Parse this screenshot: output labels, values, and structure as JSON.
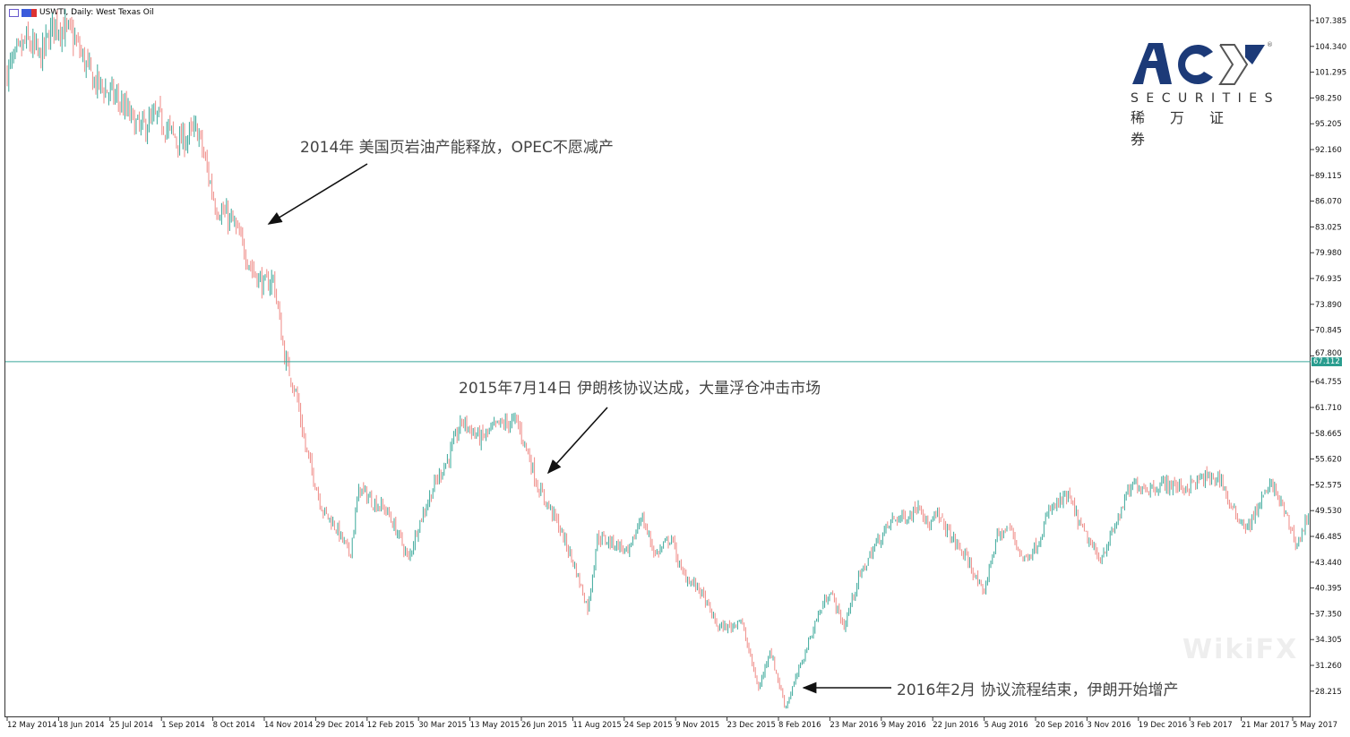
{
  "header": {
    "title": "USWTI, Daily:  West Texas Oil"
  },
  "logo": {
    "brand": "ACY",
    "sub": "SECURITIES",
    "cn": "稀万证券",
    "registered": "®"
  },
  "watermark": "WikiFX",
  "annotations": [
    "2014年 美国页岩油产能释放，OPEC不愿减产",
    "2015年7月14日 伊朗核协议达成，大量浮仓冲击市场",
    "2016年2月 协议流程结束，伊朗开始增产"
  ],
  "current_price": "67.112",
  "chart_data": {
    "type": "candlestick",
    "title": "USWTI, Daily:  West Texas Oil",
    "symbol": "USWTI",
    "timeframe": "Daily",
    "ylim": [
      26.0,
      108.5
    ],
    "y_ticks": [
      "107.385",
      "104.340",
      "101.295",
      "98.250",
      "95.205",
      "92.160",
      "89.115",
      "86.070",
      "83.025",
      "79.980",
      "76.935",
      "73.890",
      "70.845",
      "67.800",
      "64.755",
      "61.710",
      "58.665",
      "55.620",
      "52.575",
      "49.530",
      "46.485",
      "43.440",
      "40.395",
      "37.350",
      "34.305",
      "31.260",
      "28.215"
    ],
    "x_ticks": [
      {
        "date": "2014-05-12",
        "label": "12 May 2014"
      },
      {
        "date": "2014-06-18",
        "label": "18 Jun 2014"
      },
      {
        "date": "2014-07-25",
        "label": "25 Jul 2014"
      },
      {
        "date": "2014-09-01",
        "label": "1 Sep 2014"
      },
      {
        "date": "2014-10-08",
        "label": "8 Oct 2014"
      },
      {
        "date": "2014-11-14",
        "label": "14 Nov 2014"
      },
      {
        "date": "2014-12-29",
        "label": "29 Dec 2014"
      },
      {
        "date": "2015-02-12",
        "label": "12 Feb 2015"
      },
      {
        "date": "2015-03-30",
        "label": "30 Mar 2015"
      },
      {
        "date": "2015-05-13",
        "label": "13 May 2015"
      },
      {
        "date": "2015-06-26",
        "label": "26 Jun 2015"
      },
      {
        "date": "2015-08-11",
        "label": "11 Aug 2015"
      },
      {
        "date": "2015-09-24",
        "label": "24 Sep 2015"
      },
      {
        "date": "2015-11-09",
        "label": "9 Nov 2015"
      },
      {
        "date": "2015-12-23",
        "label": "23 Dec 2015"
      },
      {
        "date": "2016-02-08",
        "label": "8 Feb 2016"
      },
      {
        "date": "2016-03-23",
        "label": "23 Mar 2016"
      },
      {
        "date": "2016-05-09",
        "label": "9 May 2016"
      },
      {
        "date": "2016-06-22",
        "label": "22 Jun 2016"
      },
      {
        "date": "2016-08-05",
        "label": "5 Aug 2016"
      },
      {
        "date": "2016-09-20",
        "label": "20 Sep 2016"
      },
      {
        "date": "2016-11-03",
        "label": "3 Nov 2016"
      },
      {
        "date": "2016-12-19",
        "label": "19 Dec 2016"
      },
      {
        "date": "2017-02-03",
        "label": "3 Feb 2017"
      },
      {
        "date": "2017-03-21",
        "label": "21 Mar 2017"
      },
      {
        "date": "2017-05-05",
        "label": "5 May 2017"
      }
    ],
    "horizontal_line": 67.112,
    "colors": {
      "up": "#3aa89a",
      "down": "#ef8a86",
      "hline": "#3aa89a"
    },
    "approx_closes": [
      [
        "2014-05-12",
        101.4
      ],
      [
        "2014-05-26",
        105.0
      ],
      [
        "2014-06-05",
        103.0
      ],
      [
        "2014-06-15",
        107.2
      ],
      [
        "2014-06-28",
        105.6
      ],
      [
        "2014-07-13",
        100.3
      ],
      [
        "2014-07-30",
        98.2
      ],
      [
        "2014-08-16",
        94.5
      ],
      [
        "2014-08-29",
        96.0
      ],
      [
        "2014-09-14",
        93.0
      ],
      [
        "2014-09-27",
        94.5
      ],
      [
        "2014-10-10",
        85.5
      ],
      [
        "2014-10-23",
        83.4
      ],
      [
        "2014-11-05",
        78.1
      ],
      [
        "2014-11-14",
        76.0
      ],
      [
        "2014-11-22",
        77.0
      ],
      [
        "2014-12-02",
        67.5
      ],
      [
        "2014-12-12",
        63.3
      ],
      [
        "2014-12-20",
        57.0
      ],
      [
        "2015-01-04",
        49.6
      ],
      [
        "2015-01-16",
        47.5
      ],
      [
        "2015-01-28",
        44.3
      ],
      [
        "2015-02-05",
        52.2
      ],
      [
        "2015-02-17",
        50.6
      ],
      [
        "2015-03-01",
        49.6
      ],
      [
        "2015-03-13",
        46.4
      ],
      [
        "2015-03-21",
        43.7
      ],
      [
        "2015-03-29",
        47.5
      ],
      [
        "2015-04-13",
        52.7
      ],
      [
        "2015-04-25",
        55.9
      ],
      [
        "2015-05-06",
        60.1
      ],
      [
        "2015-05-22",
        58.0
      ],
      [
        "2015-06-06",
        59.6
      ],
      [
        "2015-06-22",
        60.1
      ],
      [
        "2015-07-03",
        55.9
      ],
      [
        "2015-07-11",
        52.2
      ],
      [
        "2015-07-27",
        48.5
      ],
      [
        "2015-08-12",
        43.2
      ],
      [
        "2015-08-24",
        37.9
      ],
      [
        "2015-09-01",
        46.4
      ],
      [
        "2015-09-20",
        45.4
      ],
      [
        "2015-09-28",
        44.3
      ],
      [
        "2015-10-09",
        49.0
      ],
      [
        "2015-10-22",
        44.3
      ],
      [
        "2015-11-05",
        46.4
      ],
      [
        "2015-11-14",
        42.2
      ],
      [
        "2015-11-30",
        40.1
      ],
      [
        "2015-12-15",
        35.8
      ],
      [
        "2015-12-27",
        35.8
      ],
      [
        "2016-01-04",
        36.9
      ],
      [
        "2016-01-21",
        28.4
      ],
      [
        "2016-01-31",
        33.2
      ],
      [
        "2016-02-14",
        26.3
      ],
      [
        "2016-02-25",
        30.5
      ],
      [
        "2016-03-12",
        36.9
      ],
      [
        "2016-03-23",
        40.1
      ],
      [
        "2016-04-05",
        35.8
      ],
      [
        "2016-04-17",
        41.1
      ],
      [
        "2016-05-03",
        45.4
      ],
      [
        "2016-05-19",
        48.5
      ],
      [
        "2016-06-03",
        49.0
      ],
      [
        "2016-06-11",
        50.6
      ],
      [
        "2016-06-18",
        47.5
      ],
      [
        "2016-06-26",
        49.0
      ],
      [
        "2016-07-08",
        46.4
      ],
      [
        "2016-07-24",
        43.2
      ],
      [
        "2016-08-04",
        39.5
      ],
      [
        "2016-08-16",
        46.4
      ],
      [
        "2016-08-28",
        47.5
      ],
      [
        "2016-09-09",
        43.7
      ],
      [
        "2016-09-21",
        45.4
      ],
      [
        "2016-10-02",
        49.6
      ],
      [
        "2016-10-18",
        51.2
      ],
      [
        "2016-10-29",
        47.5
      ],
      [
        "2016-11-14",
        43.7
      ],
      [
        "2016-11-26",
        46.9
      ],
      [
        "2016-12-08",
        51.2
      ],
      [
        "2016-12-16",
        52.7
      ],
      [
        "2016-12-28",
        52.2
      ],
      [
        "2017-01-13",
        52.7
      ],
      [
        "2017-01-29",
        52.2
      ],
      [
        "2017-02-15",
        53.3
      ],
      [
        "2017-03-03",
        53.3
      ],
      [
        "2017-03-12",
        49.6
      ],
      [
        "2017-03-27",
        47.5
      ],
      [
        "2017-04-07",
        50.6
      ],
      [
        "2017-04-17",
        52.7
      ],
      [
        "2017-04-27",
        49.6
      ],
      [
        "2017-05-09",
        45.4
      ],
      [
        "2017-05-20",
        49.6
      ]
    ]
  }
}
